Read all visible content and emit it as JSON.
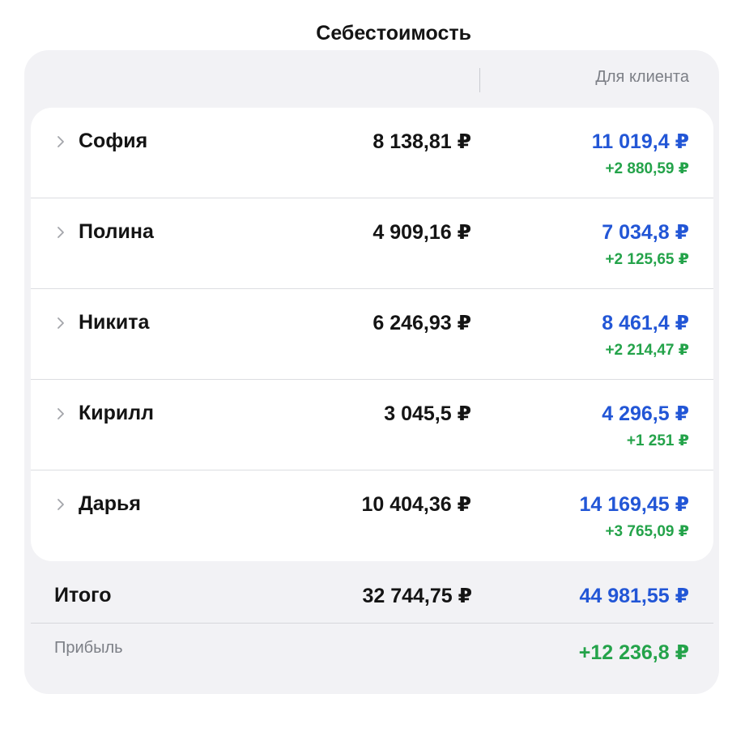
{
  "header": {
    "cost_label": "Себестоимость",
    "client_label": "Для клиента"
  },
  "rows": [
    {
      "name": "София",
      "cost": "8 138,81 ₽",
      "client": "11 019,4 ₽",
      "markup": "+2 880,59 ₽"
    },
    {
      "name": "Полина",
      "cost": "4 909,16 ₽",
      "client": "7 034,8 ₽",
      "markup": "+2 125,65 ₽"
    },
    {
      "name": "Никита",
      "cost": "6 246,93 ₽",
      "client": "8 461,4 ₽",
      "markup": "+2 214,47 ₽"
    },
    {
      "name": "Кирилл",
      "cost": "3 045,5 ₽",
      "client": "4 296,5 ₽",
      "markup": "+1 251 ₽"
    },
    {
      "name": "Дарья",
      "cost": "10 404,36 ₽",
      "client": "14 169,45 ₽",
      "markup": "+3 765,09 ₽"
    }
  ],
  "total": {
    "label": "Итого",
    "cost": "32 744,75 ₽",
    "client": "44 981,55 ₽"
  },
  "profit": {
    "label": "Прибыль",
    "value": "+12 236,8 ₽"
  },
  "colors": {
    "client_blue": "#2256d6",
    "markup_green": "#24a34a",
    "panel_bg": "#f2f2f5"
  },
  "icons": {
    "row_expand": "chevron-right-icon"
  }
}
